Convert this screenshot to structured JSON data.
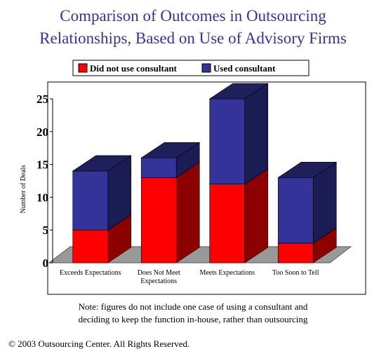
{
  "chart_data": {
    "type": "bar",
    "stacked": true,
    "title": [
      "Comparison of Outcomes in Outsourcing",
      "Relationships, Based on Use of Advisory Firms"
    ],
    "y_label": "Number of Deals",
    "categories": [
      "Exceeds Expectations",
      "Does Not Meet Expectations",
      "Meets Expectations",
      "Too Soon to Tell"
    ],
    "series": [
      {
        "name": "Did not use consultant",
        "color": "#ff0000",
        "values": [
          5,
          13,
          12,
          3
        ]
      },
      {
        "name": "Used consultant",
        "color": "#333399",
        "values": [
          9,
          3,
          13,
          10
        ]
      }
    ],
    "ylim": [
      0,
      25
    ],
    "yticks": [
      0,
      5,
      10,
      15,
      20,
      25
    ],
    "note": [
      "Note: figures do not include one case of using a consultant and",
      "deciding to keep the function in-house, rather than outsourcing"
    ],
    "copyright": "© 2003 Outsourcing Center. All Rights Reserved."
  }
}
